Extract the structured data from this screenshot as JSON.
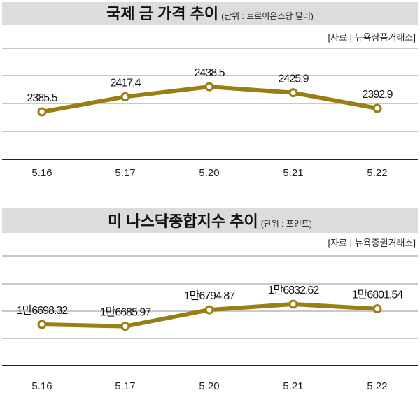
{
  "chart_data": [
    {
      "type": "line",
      "title": "국제 금 가격 추이",
      "unit": "(단위 : 트로이온스당 달러)",
      "source": "[자료 | 뉴욕상품거래소]",
      "categories": [
        "5.16",
        "5.17",
        "5.20",
        "5.21",
        "5.22"
      ],
      "values": [
        2385.5,
        2417.4,
        2438.5,
        2425.9,
        2392.9
      ],
      "labels": [
        "2385.5",
        "2417.4",
        "2438.5",
        "2425.9",
        "2392.9"
      ],
      "ylim": [
        2285,
        2520
      ],
      "grid": true,
      "color": "#9a7e14"
    },
    {
      "type": "line",
      "title": "미 나스닥종합지수 추이",
      "unit": "(단위 : 포인트)",
      "source": "[자료 | 뉴욕증권거래소]",
      "categories": [
        "5.16",
        "5.17",
        "5.20",
        "5.21",
        "5.22"
      ],
      "values": [
        16698.32,
        16685.97,
        16794.87,
        16832.62,
        16801.54
      ],
      "labels": [
        "1만6698.32",
        "1만6685.97",
        "1만6794.87",
        "1만6832.62",
        "1만6801.54"
      ],
      "ylim": [
        16425,
        17152
      ],
      "grid": true,
      "color": "#9a7e14"
    }
  ]
}
